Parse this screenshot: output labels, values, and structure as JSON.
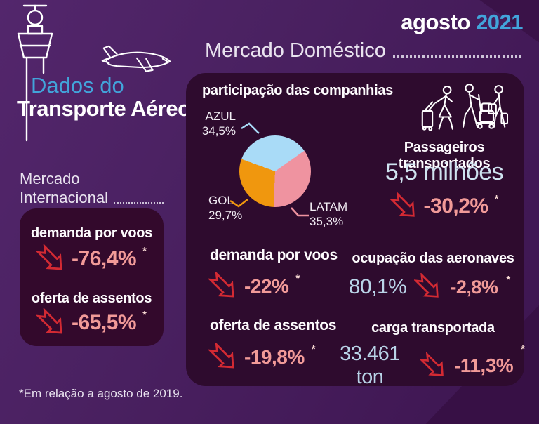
{
  "brand": {
    "line1": "Dados do",
    "line2": "Transporte Aéreo"
  },
  "period": {
    "month": "agosto",
    "year": "2021"
  },
  "footnote": "*Em relação a agosto de 2019.",
  "domestic": {
    "title": "Mercado Doméstico",
    "chart_title": "participação das companhias",
    "passengers": {
      "label": "Passageiros transportados",
      "value": "5,5 milhões",
      "delta": "-30,2%",
      "note": "*"
    },
    "demand": {
      "label": "demanda por voos",
      "delta": "-22%",
      "note": "*"
    },
    "seats": {
      "label": "oferta de assentos",
      "delta": "-19,8%",
      "note": "*"
    },
    "occupancy": {
      "label": "ocupação das aeronaves",
      "value": "80,1%",
      "delta": "-2,8%",
      "note": "*"
    },
    "cargo": {
      "label": "carga transportada",
      "value": "33.461 ton",
      "delta": "-11,3%",
      "note": "*"
    }
  },
  "international": {
    "title_line1": "Mercado",
    "title_line2": "Internacional",
    "demand": {
      "label": "demanda por voos",
      "delta": "-76,4%",
      "note": "*"
    },
    "seats": {
      "label": "oferta de assentos",
      "delta": "-65,5%",
      "note": "*"
    }
  },
  "icons": {
    "tower": "control-tower-icon",
    "plane": "airplane-icon",
    "passengers": "passengers-luggage-icon",
    "trend": "down-right-arrow-icon"
  },
  "colors": {
    "background": "#4a2161",
    "panel": "#2e0b2e",
    "accent_blue": "#42a4da",
    "pale_blue": "#b9d4e8",
    "value_blue": "#cfe3f0",
    "delta_salmon": "#f19a98",
    "arrow_red": "#d32a33"
  },
  "chart_data": {
    "type": "pie",
    "title": "participação das companhias",
    "labels": [
      "AZUL",
      "LATAM",
      "GOL"
    ],
    "values": [
      34.5,
      35.3,
      29.7
    ],
    "value_labels": [
      "34,5%",
      "35,3%",
      "29,7%"
    ],
    "colors": [
      "#a9dbf7",
      "#ef93a0",
      "#f0970e"
    ],
    "start_angle_deg": -70,
    "legend_position": "callouts"
  }
}
